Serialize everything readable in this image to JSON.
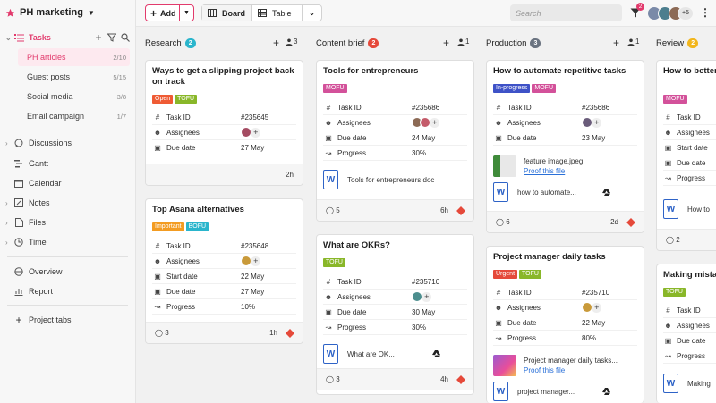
{
  "project": {
    "name": "PH marketing"
  },
  "sidebar": {
    "tasks_label": "Tasks",
    "sub_items": [
      {
        "label": "PH articles",
        "count": "2/10"
      },
      {
        "label": "Guest posts",
        "count": "5/15"
      },
      {
        "label": "Social media",
        "count": "3/8"
      },
      {
        "label": "Email campaign",
        "count": "1/7"
      }
    ],
    "items": [
      {
        "label": "Discussions",
        "icon": "chat-icon"
      },
      {
        "label": "Gantt",
        "icon": "gantt-icon"
      },
      {
        "label": "Calendar",
        "icon": "calendar-icon"
      },
      {
        "label": "Notes",
        "icon": "note-icon"
      },
      {
        "label": "Files",
        "icon": "file-icon"
      },
      {
        "label": "Time",
        "icon": "clock-icon"
      }
    ],
    "bottom": [
      {
        "label": "Overview",
        "icon": "overview-icon"
      },
      {
        "label": "Report",
        "icon": "report-icon"
      }
    ],
    "project_tabs_label": "Project tabs"
  },
  "topbar": {
    "add_label": "Add",
    "board_label": "Board",
    "table_label": "Table",
    "search_placeholder": "Search",
    "filter_badge": "2",
    "more_avatars": "+5"
  },
  "colors": {
    "accent": "#e23a6c",
    "mofu": "#d3519a",
    "tofu": "#89b729",
    "bofu": "#2ab5cc",
    "open": "#ef5b34",
    "urgent": "#e5493a",
    "important": "#f39c22",
    "inprogress": "#3e52c7"
  },
  "columns": [
    {
      "name": "Research",
      "count": "2",
      "badge_color": "#2ab5cc",
      "members": "3"
    },
    {
      "name": "Content brief",
      "count": "2",
      "badge_color": "#e5493a",
      "members": "1"
    },
    {
      "name": "Production",
      "count": "3",
      "badge_color": "#6a7380",
      "members": "1"
    },
    {
      "name": "Review",
      "count": "2",
      "badge_color": "#f2b61c"
    }
  ],
  "field_labels": {
    "task_id": "Task ID",
    "assignees": "Assignees",
    "start_date": "Start date",
    "due_date": "Due date",
    "progress": "Progress"
  },
  "cards": {
    "r1": {
      "title": "Ways to get a slipping project back on track",
      "tags": [
        "Open",
        "TOFU"
      ],
      "task_id": "#235645",
      "due": "27 May",
      "time": "2h"
    },
    "r2": {
      "title": "Top Asana alternatives",
      "tags": [
        "Important",
        "BOFU"
      ],
      "task_id": "#235648",
      "start": "22 May",
      "due": "27 May",
      "progress": "10%",
      "comments": "3",
      "time": "1h"
    },
    "c1": {
      "title": "Tools for entrepreneurs",
      "tags": [
        "MOFU"
      ],
      "task_id": "#235686",
      "due": "24 May",
      "progress": "30%",
      "file": "Tools for entrepreneurs.doc",
      "comments": "5",
      "time": "6h"
    },
    "c2": {
      "title": "What are OKRs?",
      "tags": [
        "TOFU"
      ],
      "task_id": "#235710",
      "due": "30 May",
      "progress": "30%",
      "file": "What are OK...",
      "comments": "3",
      "time": "4h"
    },
    "p1": {
      "title": "How to automate repetitive tasks",
      "tags": [
        "In-progress",
        "MOFU"
      ],
      "task_id": "#235686",
      "due": "23 May",
      "file1": "feature image.jpeg",
      "proof": "Proof this file",
      "file2": "how to automate...",
      "comments": "6",
      "time": "2d"
    },
    "p2": {
      "title": "Project manager daily tasks",
      "tags": [
        "Urgent",
        "TOFU"
      ],
      "task_id": "#235710",
      "due": "22 May",
      "progress": "80%",
      "file1": "Project manager daily tasks...",
      "proof": "Proof this file",
      "file2": "project manager..."
    },
    "v1": {
      "title": "How to better handle deadlines as a...",
      "tags": [
        "MOFU"
      ],
      "file": "How to",
      "comments": "2"
    },
    "v2": {
      "title": "Making mistakes...",
      "tags": [
        "TOFU"
      ],
      "start": "Start date",
      "file": "Making"
    }
  }
}
